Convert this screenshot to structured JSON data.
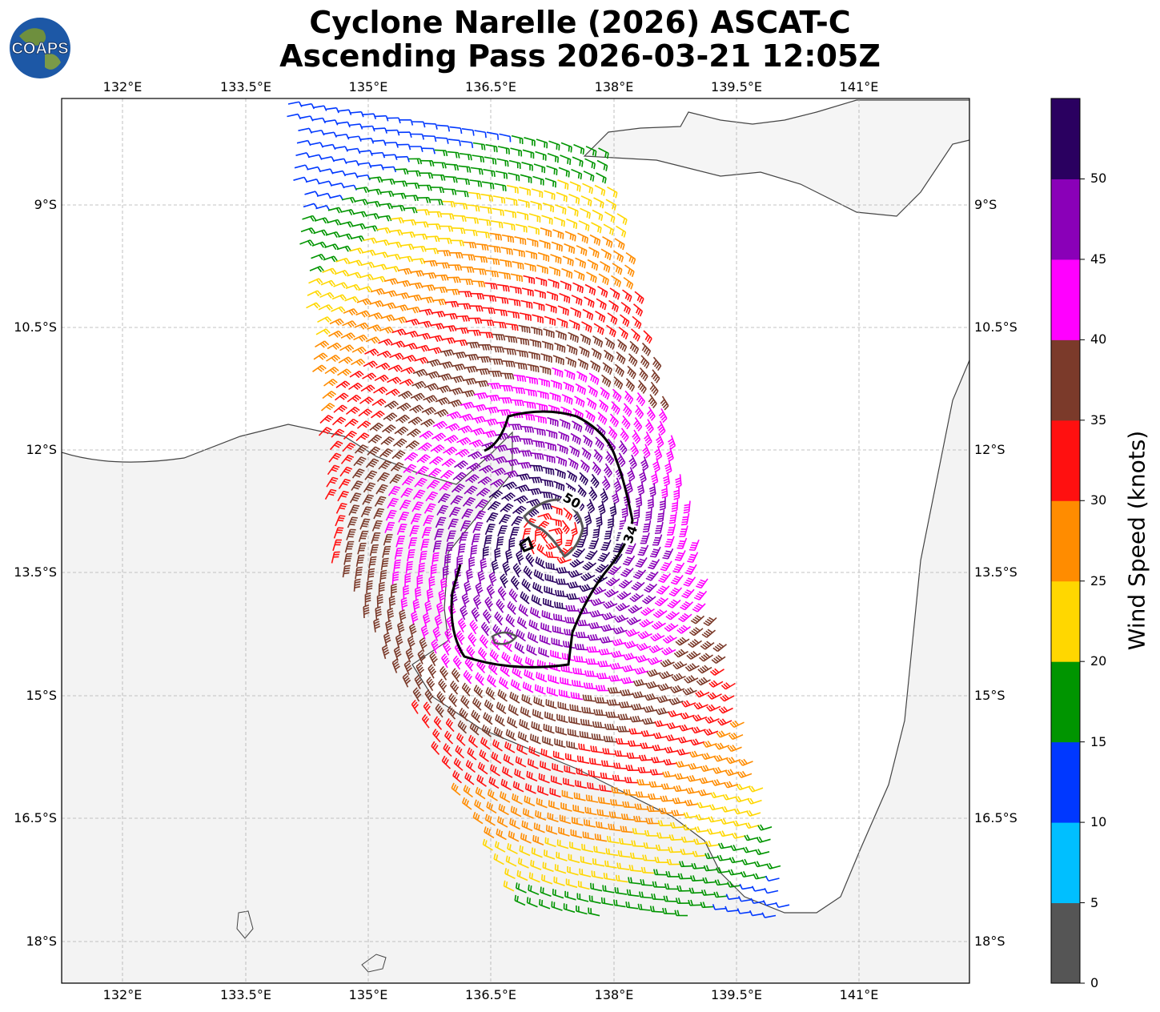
{
  "title_line1": "Cyclone Narelle (2026) ASCAT-C",
  "title_line2": "Ascending Pass 2026-03-21 12:05Z",
  "logo_text": "COAPS",
  "lon_ticks": [
    "132°E",
    "133.5°E",
    "135°E",
    "136.5°E",
    "138°E",
    "139.5°E",
    "141°E"
  ],
  "lat_ticks": [
    "9°S",
    "10.5°S",
    "12°S",
    "13.5°S",
    "15°S",
    "16.5°S",
    "18°S"
  ],
  "colorbar": {
    "title": "Wind Speed (knots)",
    "ticks": [
      "0",
      "5",
      "10",
      "15",
      "20",
      "25",
      "30",
      "35",
      "40",
      "45",
      "50"
    ],
    "colors": [
      "#555555",
      "#00bfff",
      "#0038ff",
      "#009500",
      "#ffd700",
      "#ff8c00",
      "#ff1010",
      "#7b3a2a",
      "#ff00ff",
      "#8a00b8",
      "#2a0060"
    ]
  },
  "contour_labels": [
    "50",
    "34"
  ],
  "chart_data": {
    "type": "map",
    "projection": "plate carree",
    "lon_range": [
      131.25,
      142.35
    ],
    "lat_range": [
      -19.25,
      -8.45
    ],
    "grid": true,
    "contours_knots": [
      34,
      50
    ]
  }
}
